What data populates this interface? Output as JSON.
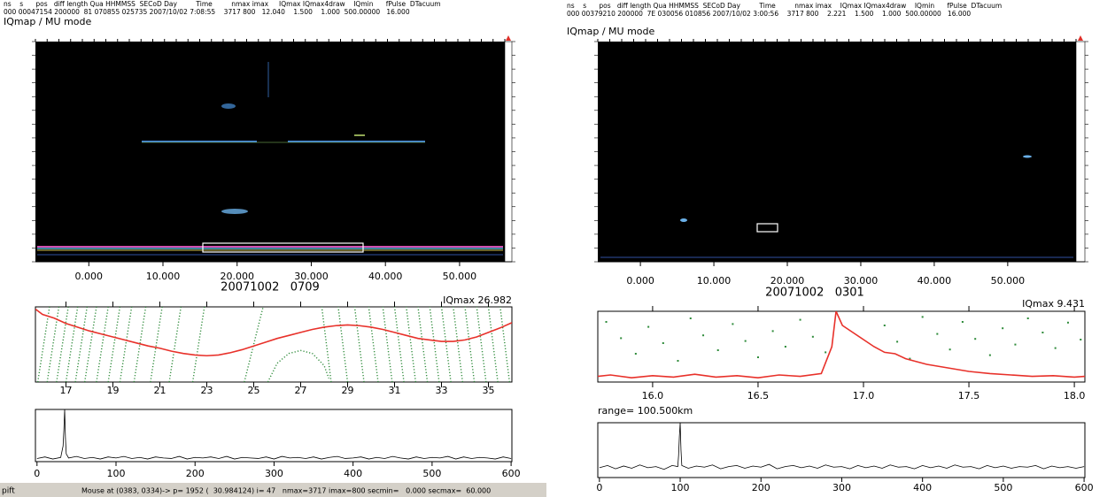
{
  "panels": [
    {
      "header": [
        "ns    s      pos   diff length Qua HHMMSS  SECoD Day         Time         nmax imax     IQmax IQmax4draw    IQmin      fPulse  DTacuum",
        "000 00047154 200000  81 070855 025735 2007/10/02 7:08:55    3717 800   12.040    1.500    1.000  500.00000   16.000"
      ],
      "mode": "IQmap / MU mode",
      "image": {
        "xlim": [
          -7.2,
          56.1
        ],
        "xticks": [
          {
            "value": 0,
            "label": "0.000"
          },
          {
            "value": 10,
            "label": "10.000"
          },
          {
            "value": 20,
            "label": "20.000"
          },
          {
            "value": 30,
            "label": "30.000"
          },
          {
            "value": 40,
            "label": "40.000"
          },
          {
            "value": 50,
            "label": "50.000"
          }
        ]
      },
      "date": "20071002   0709",
      "iqmax": "IQmax 26.982",
      "profile": {
        "type": "line",
        "xlim": [
          15.7,
          36
        ],
        "ylim": [
          0,
          1
        ],
        "xticks": [
          17,
          19,
          21,
          23,
          25,
          27,
          29,
          31,
          33,
          35
        ],
        "series": [
          {
            "color": "#e8312a",
            "x": [
              15.7,
              16,
              16.5,
              17,
              17.5,
              18,
              18.5,
              19,
              19.5,
              20,
              20.5,
              21,
              21.5,
              22,
              22.5,
              23,
              23.5,
              24,
              24.5,
              25,
              25.5,
              26,
              26.5,
              27,
              27.5,
              28,
              28.5,
              29,
              29.5,
              30,
              30.5,
              31,
              31.5,
              32,
              32.5,
              33,
              33.5,
              34,
              34.5,
              35,
              35.5,
              36
            ],
            "values": [
              0.97,
              0.9,
              0.85,
              0.78,
              0.73,
              0.68,
              0.64,
              0.6,
              0.56,
              0.52,
              0.48,
              0.45,
              0.41,
              0.38,
              0.36,
              0.35,
              0.36,
              0.39,
              0.43,
              0.48,
              0.53,
              0.58,
              0.62,
              0.66,
              0.7,
              0.73,
              0.75,
              0.76,
              0.75,
              0.73,
              0.7,
              0.66,
              0.62,
              0.58,
              0.56,
              0.54,
              0.54,
              0.56,
              0.6,
              0.66,
              0.72,
              0.79
            ]
          }
        ],
        "phase_color": "#2e8b3a",
        "phase": [
          {
            "x": [
              15.8,
              16.3
            ],
            "y": [
              0,
              1
            ]
          },
          {
            "x": [
              16.2,
              16.7
            ],
            "y": [
              0,
              1
            ]
          },
          {
            "x": [
              16.6,
              17.1
            ],
            "y": [
              0,
              1
            ]
          },
          {
            "x": [
              17.0,
              17.5
            ],
            "y": [
              0,
              1
            ]
          },
          {
            "x": [
              17.4,
              17.9
            ],
            "y": [
              0,
              1
            ]
          },
          {
            "x": [
              17.8,
              18.3
            ],
            "y": [
              0,
              1
            ]
          },
          {
            "x": [
              18.3,
              18.8
            ],
            "y": [
              0,
              1
            ]
          },
          {
            "x": [
              18.8,
              19.3
            ],
            "y": [
              0,
              1
            ]
          },
          {
            "x": [
              19.3,
              19.8
            ],
            "y": [
              0,
              1
            ]
          },
          {
            "x": [
              19.9,
              20.4
            ],
            "y": [
              0,
              1
            ]
          },
          {
            "x": [
              20.6,
              21.1
            ],
            "y": [
              0,
              1
            ]
          },
          {
            "x": [
              21.4,
              21.9
            ],
            "y": [
              0,
              1
            ]
          },
          {
            "x": [
              22.4,
              22.9
            ],
            "y": [
              0,
              1
            ]
          },
          {
            "x": [
              24.6,
              25.4
            ],
            "y": [
              0,
              1
            ]
          },
          {
            "x": [
              25.6,
              26,
              26.5,
              27,
              27.5,
              28,
              28.2
            ],
            "y": [
              0,
              0.25,
              0.38,
              0.42,
              0.38,
              0.22,
              0.05
            ]
          },
          {
            "x": [
              28.3,
              27.9
            ],
            "y": [
              0,
              1
            ]
          },
          {
            "x": [
              29.0,
              28.6
            ],
            "y": [
              0,
              1
            ]
          },
          {
            "x": [
              29.7,
              29.3
            ],
            "y": [
              0,
              1
            ]
          },
          {
            "x": [
              30.3,
              29.9
            ],
            "y": [
              0,
              1
            ]
          },
          {
            "x": [
              30.9,
              30.5
            ],
            "y": [
              0,
              1
            ]
          },
          {
            "x": [
              31.4,
              31.0
            ],
            "y": [
              0,
              1
            ]
          },
          {
            "x": [
              31.9,
              31.5
            ],
            "y": [
              0,
              1
            ]
          },
          {
            "x": [
              32.4,
              32.0
            ],
            "y": [
              0,
              1
            ]
          },
          {
            "x": [
              32.9,
              32.5
            ],
            "y": [
              0,
              1
            ]
          },
          {
            "x": [
              33.4,
              33.0
            ],
            "y": [
              0,
              1
            ]
          },
          {
            "x": [
              33.9,
              33.5
            ],
            "y": [
              0,
              1
            ]
          },
          {
            "x": [
              34.4,
              34.0
            ],
            "y": [
              0,
              1
            ]
          },
          {
            "x": [
              34.9,
              34.5
            ],
            "y": [
              0,
              1
            ]
          },
          {
            "x": [
              35.4,
              35.0
            ],
            "y": [
              0,
              1
            ]
          },
          {
            "x": [
              35.9,
              35.5
            ],
            "y": [
              0,
              1
            ]
          }
        ]
      },
      "trace": {
        "type": "line",
        "xlim": [
          -2,
          601
        ],
        "ylim": [
          0,
          1
        ],
        "color": "#000000",
        "xticks": [
          0,
          100,
          200,
          300,
          400,
          500,
          600
        ],
        "x": [
          0,
          10,
          20,
          30,
          33,
          34,
          35,
          36,
          37,
          40,
          50,
          60,
          70,
          80,
          90,
          100,
          110,
          120,
          130,
          140,
          150,
          160,
          170,
          180,
          190,
          200,
          210,
          220,
          230,
          240,
          250,
          260,
          270,
          280,
          290,
          300,
          310,
          320,
          330,
          340,
          350,
          360,
          370,
          380,
          390,
          400,
          410,
          420,
          430,
          440,
          450,
          460,
          470,
          480,
          490,
          500,
          510,
          520,
          530,
          540,
          550,
          560,
          570,
          580,
          590,
          600
        ],
        "values": [
          0.06,
          0.09,
          0.05,
          0.08,
          0.3,
          0.6,
          1.0,
          0.45,
          0.15,
          0.07,
          0.1,
          0.06,
          0.08,
          0.05,
          0.09,
          0.07,
          0.1,
          0.06,
          0.08,
          0.05,
          0.09,
          0.07,
          0.06,
          0.1,
          0.05,
          0.08,
          0.07,
          0.09,
          0.06,
          0.1,
          0.05,
          0.08,
          0.07,
          0.06,
          0.09,
          0.05,
          0.1,
          0.07,
          0.08,
          0.06,
          0.09,
          0.05,
          0.08,
          0.1,
          0.06,
          0.07,
          0.09,
          0.05,
          0.08,
          0.06,
          0.1,
          0.07,
          0.05,
          0.09,
          0.06,
          0.08,
          0.07,
          0.1,
          0.05,
          0.09,
          0.06,
          0.08,
          0.07,
          0.05,
          0.09,
          0.06
        ]
      },
      "status": {
        "left": "pift",
        "text": "Mouse at (0383, 0334)-> p= 1952 (  30.984124) i= 47   nmax=3717 imax=800 secmin=   0.000 secmax=  60.000"
      }
    },
    {
      "header": [
        "ns    s      pos   diff length Qua HHMMSS  SECoD Day         Time         nmax imax    IQmax IQmax4draw    IQmin      fPulse  DTacuum",
        "000 00379210 200000  7E 030056 010856 2007/10/02 3:00:56    3717 800    2.221    1.500    1.000  500.00000   16.000"
      ],
      "mode": "IQmap / MU mode",
      "image": {
        "xlim": [
          -5.8,
          59.3
        ],
        "xticks": [
          {
            "value": 0,
            "label": "0.000"
          },
          {
            "value": 10,
            "label": "10.000"
          },
          {
            "value": 20,
            "label": "20.000"
          },
          {
            "value": 30,
            "label": "30.000"
          },
          {
            "value": 40,
            "label": "40.000"
          },
          {
            "value": 50,
            "label": "50.000"
          }
        ]
      },
      "date": "20071002   0301",
      "iqmax": "IQmax 9.431",
      "profile": {
        "type": "line",
        "xlim": [
          15.74,
          18.05
        ],
        "ylim": [
          0,
          1
        ],
        "xticks": [
          {
            "value": 16,
            "label": "16.0"
          },
          16.5,
          {
            "value": 17,
            "label": "17.0"
          },
          17.5,
          {
            "value": 18,
            "label": "18.0"
          }
        ],
        "series": [
          {
            "color": "#e8312a",
            "x": [
              15.74,
              15.8,
              15.9,
              16.0,
              16.1,
              16.2,
              16.3,
              16.4,
              16.5,
              16.6,
              16.7,
              16.8,
              16.85,
              16.87,
              16.9,
              16.95,
              17.0,
              17.05,
              17.1,
              17.15,
              17.2,
              17.3,
              17.4,
              17.5,
              17.6,
              17.7,
              17.8,
              17.9,
              18.0,
              18.05
            ],
            "values": [
              0.08,
              0.1,
              0.06,
              0.09,
              0.07,
              0.11,
              0.07,
              0.09,
              0.06,
              0.1,
              0.08,
              0.12,
              0.5,
              1.0,
              0.8,
              0.7,
              0.6,
              0.5,
              0.42,
              0.4,
              0.33,
              0.25,
              0.2,
              0.15,
              0.12,
              0.1,
              0.08,
              0.09,
              0.07,
              0.08
            ]
          }
        ],
        "phase_color": "#2e8b3a",
        "phase_points": {
          "x": [
            15.78,
            15.85,
            15.92,
            15.98,
            16.05,
            16.12,
            16.18,
            16.24,
            16.31,
            16.38,
            16.44,
            16.5,
            16.57,
            16.63,
            16.7,
            16.76,
            16.82,
            17.1,
            17.16,
            17.22,
            17.28,
            17.35,
            17.41,
            17.47,
            17.53,
            17.6,
            17.66,
            17.72,
            17.78,
            17.85,
            17.91,
            17.97,
            18.03
          ],
          "y": [
            0.85,
            0.62,
            0.4,
            0.78,
            0.55,
            0.3,
            0.9,
            0.66,
            0.45,
            0.82,
            0.58,
            0.35,
            0.72,
            0.5,
            0.88,
            0.64,
            0.42,
            0.8,
            0.57,
            0.33,
            0.92,
            0.68,
            0.46,
            0.85,
            0.61,
            0.38,
            0.76,
            0.53,
            0.9,
            0.7,
            0.48,
            0.84,
            0.6
          ]
        }
      },
      "range": "range= 100.500km",
      "trace": {
        "type": "line",
        "xlim": [
          -2,
          601
        ],
        "ylim": [
          0,
          1
        ],
        "color": "#000000",
        "xticks": [
          0,
          100,
          200,
          300,
          400,
          500,
          600
        ],
        "x": [
          0,
          10,
          20,
          30,
          40,
          50,
          60,
          70,
          80,
          90,
          97,
          98,
          99,
          100,
          101,
          102,
          110,
          120,
          130,
          140,
          150,
          160,
          170,
          180,
          190,
          200,
          210,
          220,
          230,
          240,
          250,
          260,
          270,
          280,
          290,
          300,
          310,
          320,
          330,
          340,
          350,
          360,
          370,
          380,
          390,
          400,
          410,
          420,
          430,
          440,
          450,
          460,
          470,
          480,
          490,
          500,
          510,
          520,
          530,
          540,
          550,
          560,
          570,
          580,
          590,
          600
        ],
        "values": [
          0.18,
          0.22,
          0.16,
          0.21,
          0.17,
          0.23,
          0.18,
          0.2,
          0.15,
          0.22,
          0.2,
          0.4,
          0.75,
          1.0,
          0.5,
          0.22,
          0.17,
          0.21,
          0.19,
          0.23,
          0.16,
          0.2,
          0.22,
          0.17,
          0.21,
          0.19,
          0.24,
          0.16,
          0.2,
          0.22,
          0.18,
          0.21,
          0.17,
          0.23,
          0.19,
          0.2,
          0.16,
          0.22,
          0.18,
          0.21,
          0.17,
          0.23,
          0.19,
          0.2,
          0.16,
          0.22,
          0.18,
          0.21,
          0.17,
          0.23,
          0.19,
          0.2,
          0.16,
          0.22,
          0.18,
          0.21,
          0.17,
          0.2,
          0.19,
          0.22,
          0.16,
          0.21,
          0.18,
          0.2,
          0.17,
          0.2
        ]
      }
    }
  ]
}
